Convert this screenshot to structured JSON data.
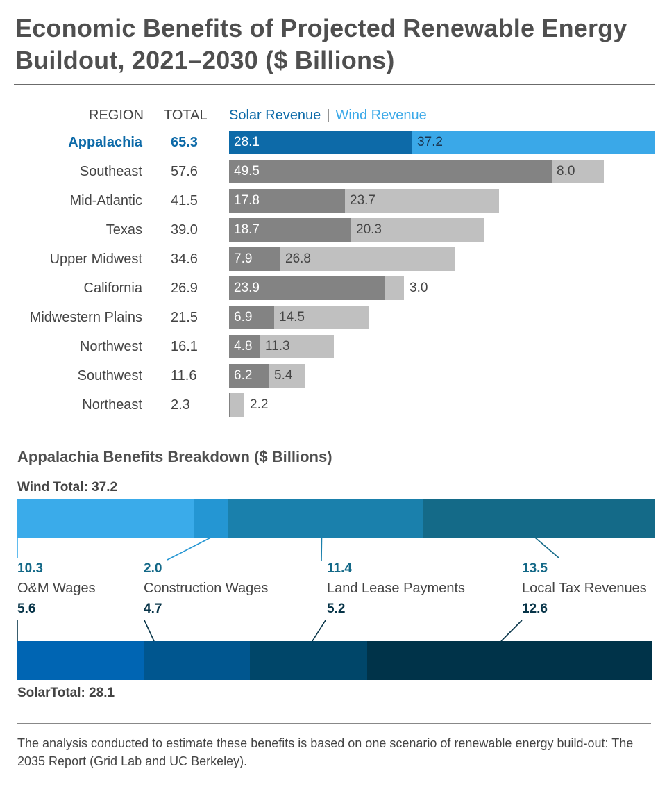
{
  "title": "Economic Benefits of Projected Renewable Energy Buildout, 2021–2030 ($ Billions)",
  "colors": {
    "solar_highlight": "#0d6aa8",
    "wind_highlight": "#3aa8e8",
    "solar_other": "#838383",
    "wind_other": "#c0c0c0",
    "wind_segments": [
      "#3aabea",
      "#2496d3",
      "#1a80ac",
      "#146a88"
    ],
    "solar_segments": [
      "#0065b3",
      "#00568f",
      "#004669",
      "#003349"
    ],
    "wind_text": "#136887",
    "solar_text": "#073448"
  },
  "main_chart": {
    "headers": {
      "region": "REGION",
      "total": "TOTAL",
      "solar": "Solar Revenue",
      "separator": "|",
      "wind": "Wind Revenue"
    }
  },
  "chart_data": [
    {
      "type": "bar",
      "stacked": true,
      "orientation": "horizontal",
      "title": "Economic Benefits of Projected Renewable Energy Buildout, 2021–2030 ($ Billions)",
      "categories": [
        "Appalachia",
        "Southeast",
        "Mid-Atlantic",
        "Texas",
        "Upper Midwest",
        "California",
        "Midwestern Plains",
        "Northwest",
        "Southwest",
        "Northeast"
      ],
      "totals": [
        "65.3",
        "57.6",
        "41.5",
        "39.0",
        "34.6",
        "26.9",
        "21.5",
        "16.1",
        "11.6",
        "2.3"
      ],
      "series": [
        {
          "name": "Solar Revenue",
          "values": [
            28.1,
            49.5,
            17.8,
            18.7,
            7.9,
            23.9,
            6.9,
            4.8,
            6.2,
            0.1
          ],
          "labels": [
            "28.1",
            "49.5",
            "17.8",
            "18.7",
            "7.9",
            "23.9",
            "6.9",
            "4.8",
            "6.2",
            ""
          ]
        },
        {
          "name": "Wind Revenue",
          "values": [
            37.2,
            8.0,
            23.7,
            20.3,
            26.8,
            3.0,
            14.5,
            11.3,
            5.4,
            2.2
          ],
          "labels": [
            "37.2",
            "8.0",
            "23.7",
            "20.3",
            "26.8",
            "3.0",
            "14.5",
            "11.3",
            "5.4",
            "2.2"
          ]
        }
      ],
      "highlight": "Appalachia",
      "xlim": [
        0,
        65.3
      ]
    },
    {
      "type": "bar",
      "stacked": true,
      "orientation": "horizontal",
      "title": "Appalachia Benefits Breakdown ($ Billions)",
      "categories": [
        "O&M Wages",
        "Construction Wages",
        "Land Lease Payments",
        "Local Tax Revenues"
      ],
      "series": [
        {
          "name": "Wind Total: 37.2",
          "values": [
            10.3,
            2.0,
            11.4,
            13.5
          ],
          "labels": [
            "10.3",
            "2.0",
            "11.4",
            "13.5"
          ]
        },
        {
          "name": "SolarTotal: 28.1",
          "values": [
            5.6,
            4.7,
            5.2,
            12.6
          ],
          "labels": [
            "5.6",
            "4.7",
            "5.2",
            "12.6"
          ]
        }
      ]
    }
  ],
  "footnote": "The analysis conducted to estimate these benefits is based on one scenario of renewable energy build-out: The 2035 Report (Grid Lab and UC Berkeley)."
}
